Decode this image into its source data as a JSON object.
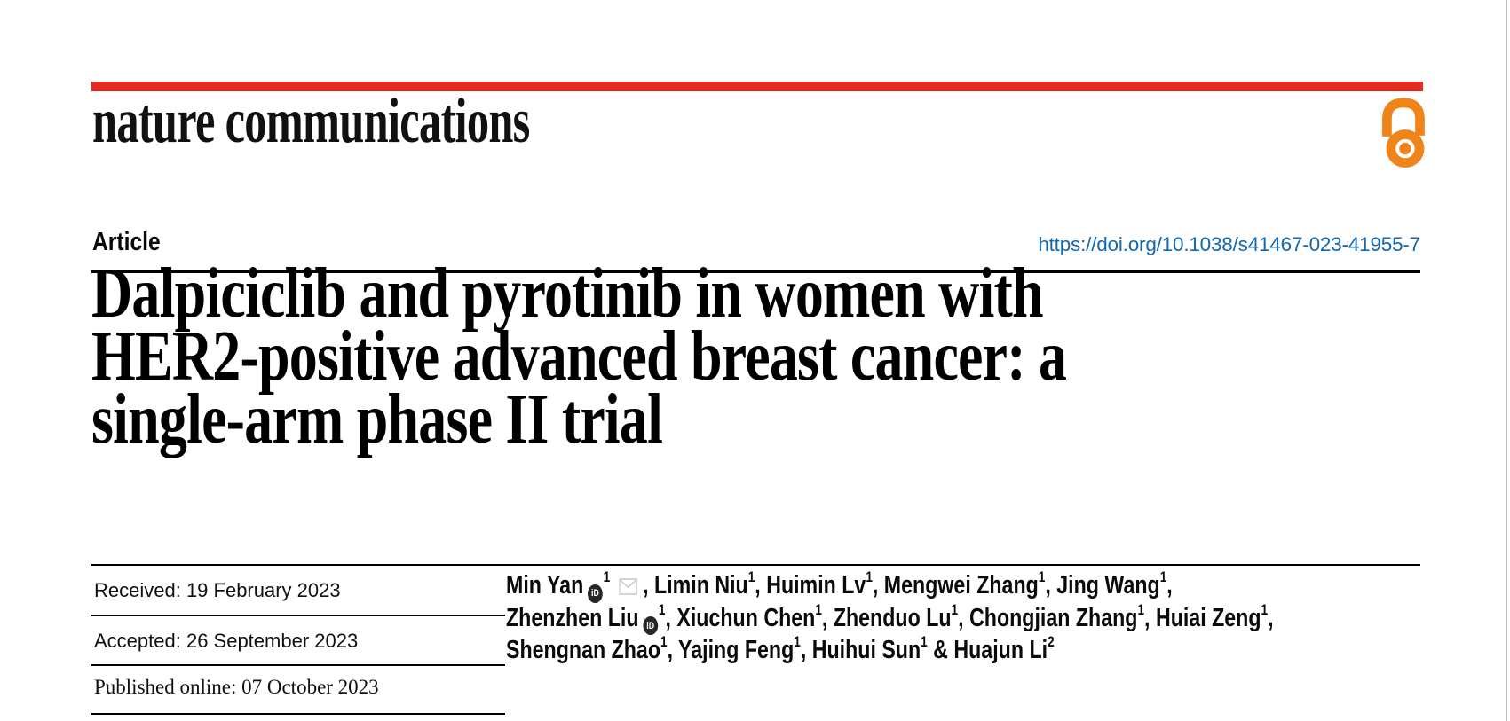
{
  "colors": {
    "brand_red": "#e32d22",
    "open_access_orange": "#ef8418",
    "link_blue": "#1268b2",
    "icon_gray": "#c9c9c9",
    "page_edge_gray": "#c0c0c0"
  },
  "masthead": {
    "journal_name": "nature communications",
    "open_access_icon": "open-access-padlock-icon"
  },
  "article": {
    "kicker": "Article",
    "doi": "https://doi.org/10.1038/s41467-023-41955-7",
    "title_lines": [
      "Dalpiciclib and pyrotinib in women with",
      "HER2-positive advanced breast cancer: a",
      "single-arm phase II trial"
    ]
  },
  "history": {
    "received": "Received: 19 February 2023",
    "accepted": "Accepted: 26 September 2023",
    "published": "Published online: 07 October 2023"
  },
  "authors": {
    "orcid_glyph": "iD",
    "lines": [
      [
        {
          "name": "Min Yan",
          "sup": "1",
          "orcid": true,
          "email": true,
          "sep": ", "
        },
        {
          "name": "Limin Niu",
          "sup": "1",
          "sep": ", "
        },
        {
          "name": "Huimin Lv",
          "sup": "1",
          "sep": ", "
        },
        {
          "name": "Mengwei Zhang",
          "sup": "1",
          "sep": ", "
        },
        {
          "name": "Jing Wang",
          "sup": "1",
          "sep": ","
        }
      ],
      [
        {
          "name": "Zhenzhen Liu",
          "sup": "1",
          "orcid": true,
          "sep": ", "
        },
        {
          "name": "Xiuchun Chen",
          "sup": "1",
          "sep": ", "
        },
        {
          "name": "Zhenduo Lu",
          "sup": "1",
          "sep": ", "
        },
        {
          "name": "Chongjian Zhang",
          "sup": "1",
          "sep": ", "
        },
        {
          "name": "Huiai Zeng",
          "sup": "1",
          "sep": ","
        }
      ],
      [
        {
          "name": "Shengnan Zhao",
          "sup": "1",
          "sep": ", "
        },
        {
          "name": "Yajing Feng",
          "sup": "1",
          "sep": ", "
        },
        {
          "name": "Huihui Sun",
          "sup": "1",
          "sep": " & "
        },
        {
          "name": "Huajun Li",
          "sup": "2",
          "sep": ""
        }
      ]
    ]
  }
}
